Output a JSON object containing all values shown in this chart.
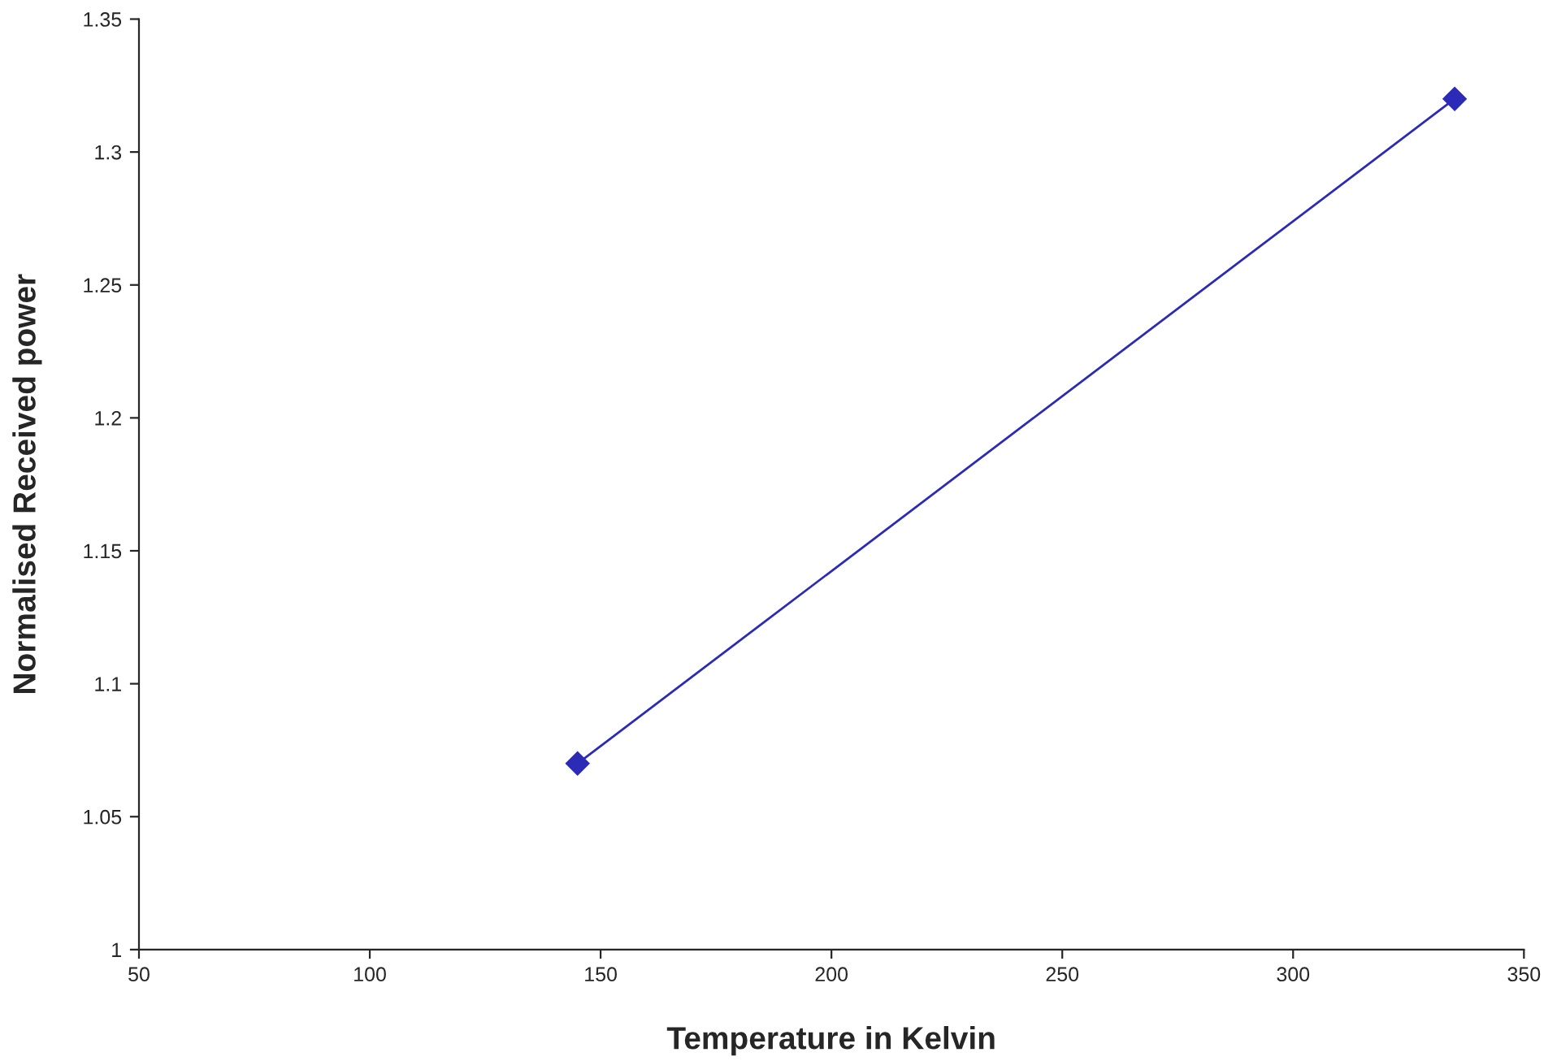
{
  "chart_data": {
    "type": "line",
    "xlabel": "Temperature in Kelvin",
    "ylabel": "Normalised Received power",
    "x": [
      145,
      335
    ],
    "series": [
      {
        "color": "#2b2bb8",
        "values": [
          1.07,
          1.32
        ]
      }
    ],
    "marker": "diamond",
    "line_style": "solid",
    "grid": false,
    "xlim": [
      50,
      350
    ],
    "xticks": [
      50,
      100,
      150,
      200,
      250,
      300,
      350
    ],
    "ylim": [
      1,
      1.35
    ],
    "yticks": [
      1,
      1.05,
      1.1,
      1.15,
      1.2,
      1.25,
      1.3,
      1.35
    ]
  }
}
